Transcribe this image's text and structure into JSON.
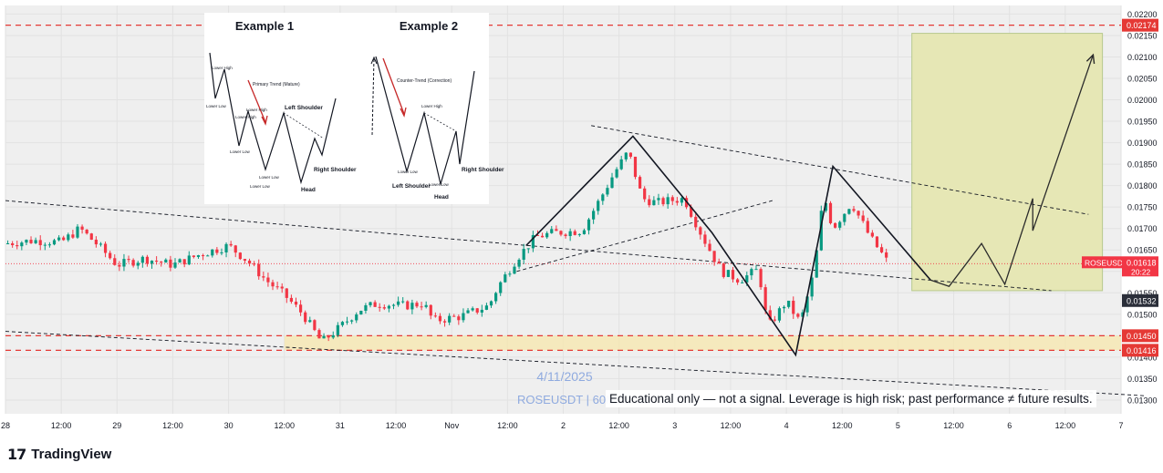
{
  "chart_data": {
    "type": "candlestick",
    "symbol": "ROSEUSDT",
    "watermark": {
      "date": "4/11/2025",
      "symbol_line": "ROSEUSDT | 60M"
    },
    "y_axis": {
      "ticks": [
        0.022,
        0.0215,
        0.021,
        0.0205,
        0.02,
        0.0195,
        0.019,
        0.0185,
        0.018,
        0.0175,
        0.017,
        0.0165,
        0.016,
        0.0155,
        0.015,
        0.0145,
        0.014,
        0.0135,
        0.013
      ],
      "ylim": [
        0.01268,
        0.0222
      ]
    },
    "x_axis": {
      "ticks": [
        {
          "label": "28",
          "t": 0
        },
        {
          "label": "12:00",
          "t": 12
        },
        {
          "label": "29",
          "t": 24
        },
        {
          "label": "12:00",
          "t": 36
        },
        {
          "label": "30",
          "t": 48
        },
        {
          "label": "12:00",
          "t": 60
        },
        {
          "label": "31",
          "t": 72
        },
        {
          "label": "12:00",
          "t": 84
        },
        {
          "label": "Nov",
          "t": 96
        },
        {
          "label": "12:00",
          "t": 108
        },
        {
          "label": "2",
          "t": 120
        },
        {
          "label": "12:00",
          "t": 132
        },
        {
          "label": "3",
          "t": 144
        },
        {
          "label": "12:00",
          "t": 156
        },
        {
          "label": "4",
          "t": 168
        },
        {
          "label": "12:00",
          "t": 180
        },
        {
          "label": "5",
          "t": 192
        },
        {
          "label": "12:00",
          "t": 204
        },
        {
          "label": "6",
          "t": 216
        },
        {
          "label": "12:00",
          "t": 228
        },
        {
          "label": "7",
          "t": 240
        }
      ],
      "xlim": [
        0,
        240
      ]
    },
    "price_labels": [
      {
        "text": "0.02174",
        "price": 0.02174,
        "style": "red"
      },
      {
        "text": "0.01450",
        "price": 0.0145,
        "style": "red"
      },
      {
        "text": "0.01416",
        "price": 0.01416,
        "style": "red"
      },
      {
        "text": "0.01532",
        "price": 0.01532,
        "style": "dark"
      }
    ],
    "current_price": {
      "symbol": "ROSEUSDT",
      "price": "0.01618",
      "countdown": "20:22",
      "value": 0.01618
    },
    "horizontal_levels": [
      0.02174,
      0.0145,
      0.01416
    ],
    "support_zone": [
      0.01416,
      0.0145
    ],
    "target_zone": {
      "t0": 195,
      "t1": 236,
      "p0": 0.01555,
      "p1": 0.02155
    },
    "price_path": [
      {
        "t": 0,
        "p": 0.01665
      },
      {
        "t": 6,
        "p": 0.01672
      },
      {
        "t": 12,
        "p": 0.01668
      },
      {
        "t": 16,
        "p": 0.017
      },
      {
        "t": 20,
        "p": 0.0166
      },
      {
        "t": 24,
        "p": 0.01615
      },
      {
        "t": 30,
        "p": 0.0163
      },
      {
        "t": 36,
        "p": 0.01615
      },
      {
        "t": 42,
        "p": 0.0164
      },
      {
        "t": 48,
        "p": 0.0166
      },
      {
        "t": 52,
        "p": 0.01625
      },
      {
        "t": 56,
        "p": 0.0158
      },
      {
        "t": 60,
        "p": 0.01545
      },
      {
        "t": 64,
        "p": 0.015
      },
      {
        "t": 68,
        "p": 0.01435
      },
      {
        "t": 72,
        "p": 0.0147
      },
      {
        "t": 76,
        "p": 0.0151
      },
      {
        "t": 80,
        "p": 0.01525
      },
      {
        "t": 86,
        "p": 0.0152
      },
      {
        "t": 90,
        "p": 0.01525
      },
      {
        "t": 92,
        "p": 0.01485
      },
      {
        "t": 98,
        "p": 0.01495
      },
      {
        "t": 104,
        "p": 0.0152
      },
      {
        "t": 106,
        "p": 0.01565
      },
      {
        "t": 110,
        "p": 0.0163
      },
      {
        "t": 114,
        "p": 0.0168
      },
      {
        "t": 118,
        "p": 0.0169
      },
      {
        "t": 124,
        "p": 0.01695
      },
      {
        "t": 128,
        "p": 0.0177
      },
      {
        "t": 131,
        "p": 0.0183
      },
      {
        "t": 134,
        "p": 0.0188
      },
      {
        "t": 137,
        "p": 0.0177
      },
      {
        "t": 140,
        "p": 0.0176
      },
      {
        "t": 146,
        "p": 0.0177
      },
      {
        "t": 150,
        "p": 0.0168
      },
      {
        "t": 154,
        "p": 0.016
      },
      {
        "t": 158,
        "p": 0.0158
      },
      {
        "t": 162,
        "p": 0.01605
      },
      {
        "t": 164,
        "p": 0.0147
      },
      {
        "t": 168,
        "p": 0.0153
      },
      {
        "t": 171,
        "p": 0.0148
      },
      {
        "t": 174,
        "p": 0.016
      },
      {
        "t": 176,
        "p": 0.0178
      },
      {
        "t": 178,
        "p": 0.017
      },
      {
        "t": 182,
        "p": 0.0176
      },
      {
        "t": 186,
        "p": 0.0168
      },
      {
        "t": 190,
        "p": 0.01618
      }
    ],
    "pattern_lines": [
      {
        "name": "head-and-shoulders-zigzag",
        "style": "solid",
        "points": [
          [
            112,
            0.0166
          ],
          [
            135,
            0.01915
          ],
          [
            152,
            0.0169
          ],
          [
            170,
            0.01405
          ],
          [
            178,
            0.01845
          ],
          [
            199,
            0.0158
          ]
        ]
      },
      {
        "name": "upper-trendline",
        "style": "dashed",
        "points": [
          [
            126,
            0.0194
          ],
          [
            233,
            0.01733
          ]
        ]
      },
      {
        "name": "rising-neckline",
        "style": "dashed",
        "points": [
          [
            110,
            0.016
          ],
          [
            165,
            0.01765
          ]
        ]
      },
      {
        "name": "long-descending-trendline",
        "style": "dashed",
        "points": [
          [
            0,
            0.01765
          ],
          [
            225,
            0.01555
          ]
        ]
      },
      {
        "name": "lower-descending-line",
        "style": "dashed",
        "points": [
          [
            0,
            0.0146
          ],
          [
            245,
            0.0131
          ]
        ]
      }
    ],
    "projection_path": [
      [
        199,
        0.0158
      ],
      [
        203,
        0.01565
      ],
      [
        210,
        0.01665
      ],
      [
        215,
        0.0157
      ],
      [
        221,
        0.0177
      ],
      [
        221,
        0.01695
      ],
      [
        234,
        0.02105
      ]
    ],
    "inset": {
      "example1": {
        "title": "Example 1",
        "primary_trend": "Primary Trend (Mature)",
        "labels": [
          "Lower High",
          "Lower Low",
          "Lower High",
          "Lower Low",
          "Lower High",
          "Lower Low",
          "Left Shoulder",
          "Lower Low",
          "Head",
          "Right Shoulder"
        ]
      },
      "example2": {
        "title": "Example 2",
        "counter_trend": "Counter-Trend (Correction)",
        "labels": [
          "Lower Low",
          "Lower High",
          "Left Shoulder",
          "Lower Low",
          "Head",
          "Right Shoulder"
        ]
      }
    }
  },
  "disclaimer": "Educational only — not a signal. Leverage is high risk; past performance ≠ future results.",
  "brand": {
    "logo": "17",
    "name": "TradingView"
  },
  "colors": {
    "up": "#089981",
    "down": "#f23645",
    "level": "#e53935",
    "zone": "#f6e7b0",
    "target": "#e6e7b5",
    "target_border": "#b7c98d"
  }
}
